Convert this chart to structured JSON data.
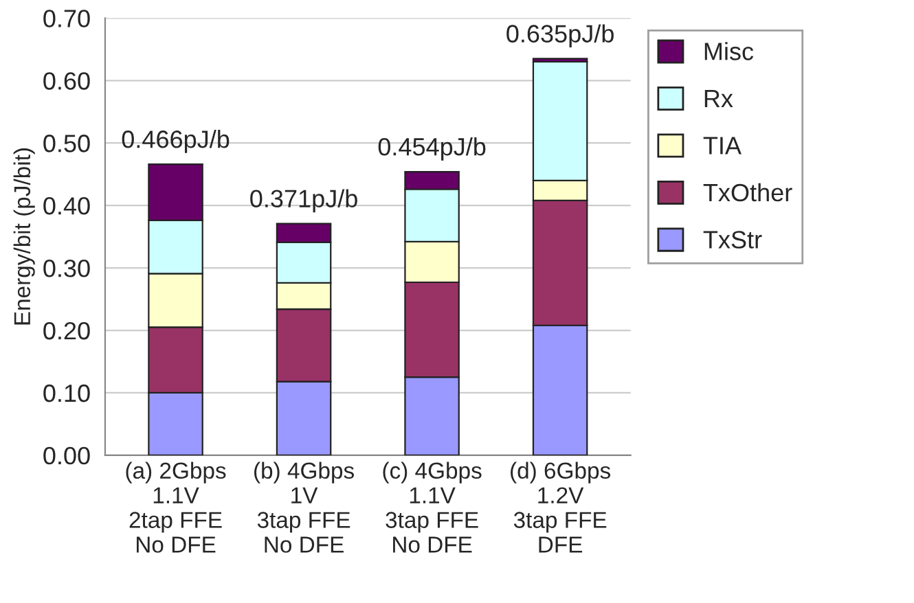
{
  "chart_data": {
    "type": "bar",
    "stacked": true,
    "ylabel": "Energy/bit (pJ/bit)",
    "categories": [
      "(a) 2Gbps\n1.1V\n2tap FFE\nNo DFE",
      "(b) 4Gbps\n1V\n3tap FFE\nNo DFE",
      "(c) 4Gbps\n1.1V\n3tap FFE\nNo DFE",
      "(d) 6Gbps\n1.2V\n3tap FFE\nDFE"
    ],
    "series": [
      {
        "name": "TxStr",
        "color": "#9999ff",
        "values": [
          0.1,
          0.118,
          0.125,
          0.208
        ]
      },
      {
        "name": "TxOther",
        "color": "#993366",
        "values": [
          0.105,
          0.116,
          0.152,
          0.2
        ]
      },
      {
        "name": "TIA",
        "color": "#ffffcc",
        "values": [
          0.086,
          0.042,
          0.065,
          0.032
        ]
      },
      {
        "name": "Rx",
        "color": "#ccffff",
        "values": [
          0.085,
          0.065,
          0.084,
          0.19
        ]
      },
      {
        "name": "Misc",
        "color": "#660066",
        "values": [
          0.09,
          0.03,
          0.028,
          0.005
        ]
      }
    ],
    "totals": [
      "0.466pJ/b",
      "0.371pJ/b",
      "0.454pJ/b",
      "0.635pJ/b"
    ],
    "ylim": [
      0,
      0.7
    ],
    "yticks": [
      {
        "value": 0,
        "label": "0.00"
      },
      {
        "value": 0.1,
        "label": "0.10"
      },
      {
        "value": 0.2,
        "label": "0.20"
      },
      {
        "value": 0.3,
        "label": "0.30"
      },
      {
        "value": 0.4,
        "label": "0.40"
      },
      {
        "value": 0.5,
        "label": "0.50"
      },
      {
        "value": 0.6,
        "label": "0.60"
      },
      {
        "value": 0.7,
        "label": "0.70"
      }
    ],
    "grid": "y",
    "legend": "top right"
  }
}
